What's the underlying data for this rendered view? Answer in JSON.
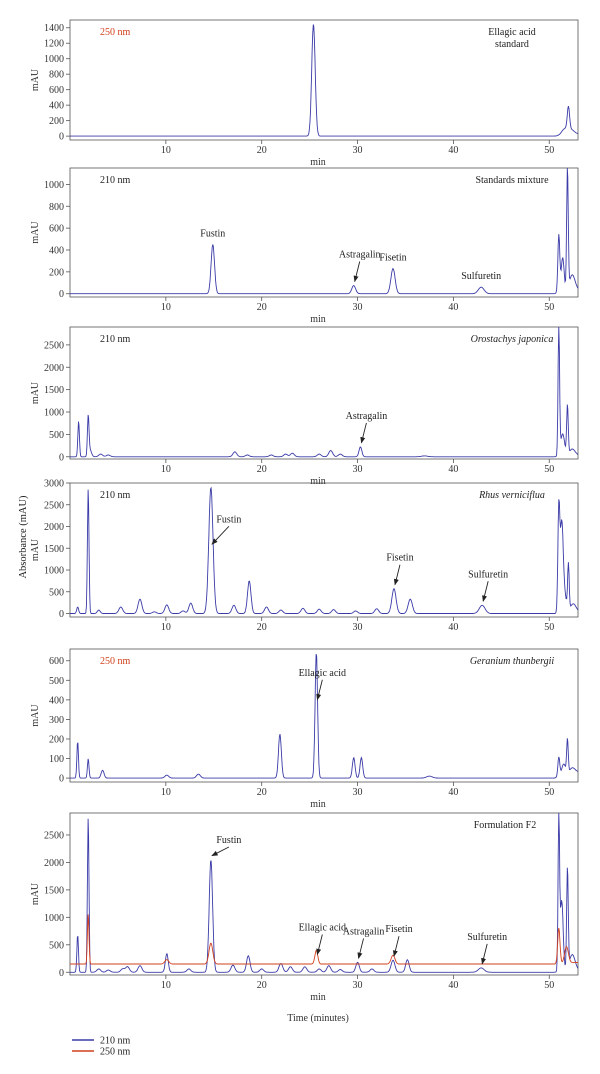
{
  "figure": {
    "y_axis_title": "Absorbance (mAU)",
    "legend": [
      {
        "name": "210 nm",
        "color": "#3b3ba8"
      },
      {
        "name": "250 nm",
        "color": "#d2401c"
      }
    ]
  },
  "chart_data": [
    {
      "type": "line",
      "wavelength": "250 nm",
      "wavelength_color": "#d2401c",
      "sample": "Ellagic acid\nstandard",
      "sample_italic": false,
      "xlabel": "min",
      "ylabel": "mAU",
      "xlim": [
        0,
        53
      ],
      "ylim": [
        -50,
        1500
      ],
      "xticks": [
        10,
        20,
        30,
        40,
        50
      ],
      "yticks": [
        0,
        200,
        400,
        600,
        800,
        1000,
        1200,
        1400
      ],
      "series": [
        {
          "color": "#3b3ba8",
          "baseline": 0,
          "peaks": [
            [
              25.4,
              1450,
              0.18
            ],
            [
              51.6,
              80,
              0.3
            ],
            [
              52.0,
              300,
              0.12
            ],
            [
              52.3,
              60,
              0.3
            ]
          ]
        }
      ],
      "annotations": []
    },
    {
      "type": "line",
      "wavelength": "210 nm",
      "wavelength_color": "#222222",
      "sample": "Standards mixture",
      "sample_italic": false,
      "xlabel": "min",
      "ylabel": "mAU",
      "xlim": [
        0,
        53
      ],
      "ylim": [
        -30,
        1150
      ],
      "xticks": [
        10,
        20,
        30,
        40,
        50
      ],
      "yticks": [
        0,
        200,
        400,
        600,
        800,
        1000
      ],
      "series": [
        {
          "color": "#3b3ba8",
          "baseline": 0,
          "peaks": [
            [
              14.9,
              450,
              0.18
            ],
            [
              29.6,
              75,
              0.2
            ],
            [
              33.7,
              230,
              0.22
            ],
            [
              42.9,
              60,
              0.3
            ],
            [
              51.0,
              530,
              0.1
            ],
            [
              51.4,
              320,
              0.15
            ],
            [
              51.9,
              1130,
              0.08
            ],
            [
              52.4,
              150,
              0.3
            ]
          ]
        }
      ],
      "annotations": [
        {
          "text": "Fustin",
          "x": 14.9,
          "y": 450,
          "arrow": false
        },
        {
          "text": "Astragalin",
          "x": 29.6,
          "y": 75,
          "arrow": true
        },
        {
          "text": "Fisetin",
          "x": 33.7,
          "y": 230,
          "arrow": false
        },
        {
          "text": "Sulfuretin",
          "x": 42.9,
          "y": 60,
          "arrow": false
        }
      ]
    },
    {
      "type": "line",
      "wavelength": "210 nm",
      "wavelength_color": "#222222",
      "sample": "Orostachys japonica",
      "sample_italic": true,
      "xlabel": "min",
      "ylabel": "mAU",
      "xlim": [
        0,
        53
      ],
      "ylim": [
        -50,
        2900
      ],
      "xticks": [
        10,
        20,
        30,
        40,
        50
      ],
      "yticks": [
        0,
        500,
        1000,
        1500,
        2000,
        2500
      ],
      "series": [
        {
          "color": "#3b3ba8",
          "baseline": 0,
          "peaks": [
            [
              0.9,
              800,
              0.08
            ],
            [
              1.9,
              900,
              0.08
            ],
            [
              2.1,
              150,
              0.15
            ],
            [
              3.2,
              60,
              0.2
            ],
            [
              4.0,
              40,
              0.2
            ],
            [
              17.2,
              110,
              0.2
            ],
            [
              18.5,
              40,
              0.2
            ],
            [
              21.0,
              40,
              0.2
            ],
            [
              22.5,
              60,
              0.2
            ],
            [
              23.2,
              80,
              0.2
            ],
            [
              26.0,
              60,
              0.2
            ],
            [
              27.2,
              140,
              0.2
            ],
            [
              28.2,
              60,
              0.2
            ],
            [
              30.3,
              220,
              0.15
            ],
            [
              37.0,
              20,
              0.3
            ],
            [
              51.0,
              2880,
              0.08
            ],
            [
              51.4,
              500,
              0.2
            ],
            [
              51.9,
              1120,
              0.08
            ],
            [
              52.4,
              150,
              0.3
            ]
          ]
        }
      ],
      "annotations": [
        {
          "text": "Astragalin",
          "x": 30.3,
          "y": 220,
          "arrow": true
        }
      ]
    },
    {
      "type": "line",
      "wavelength": "210 nm",
      "wavelength_color": "#222222",
      "sample": "Rhus verniciflua",
      "sample_italic": true,
      "xlabel": "",
      "ylabel": "mAU",
      "xlim": [
        0,
        53
      ],
      "ylim": [
        -80,
        3000
      ],
      "xticks": [
        10,
        20,
        30,
        40,
        50
      ],
      "yticks": [
        0,
        500,
        1000,
        1500,
        2000,
        2500,
        3000
      ],
      "series": [
        {
          "color": "#3b3ba8",
          "baseline": 0,
          "peaks": [
            [
              0.8,
              150,
              0.1
            ],
            [
              1.9,
              2900,
              0.08
            ],
            [
              3.0,
              80,
              0.15
            ],
            [
              5.3,
              150,
              0.2
            ],
            [
              7.3,
              330,
              0.2
            ],
            [
              8.8,
              40,
              0.2
            ],
            [
              10.1,
              200,
              0.2
            ],
            [
              11.8,
              60,
              0.2
            ],
            [
              12.6,
              240,
              0.2
            ],
            [
              14.7,
              2900,
              0.22
            ],
            [
              17.1,
              190,
              0.2
            ],
            [
              18.7,
              750,
              0.18
            ],
            [
              20.5,
              150,
              0.2
            ],
            [
              22.0,
              80,
              0.2
            ],
            [
              24.3,
              120,
              0.2
            ],
            [
              26.0,
              100,
              0.2
            ],
            [
              27.5,
              90,
              0.2
            ],
            [
              29.8,
              60,
              0.2
            ],
            [
              32.0,
              110,
              0.2
            ],
            [
              33.8,
              570,
              0.22
            ],
            [
              35.5,
              330,
              0.22
            ],
            [
              43.0,
              190,
              0.3
            ],
            [
              51.0,
              2350,
              0.1
            ],
            [
              51.3,
              2000,
              0.15
            ],
            [
              51.6,
              400,
              0.2
            ],
            [
              52.0,
              1060,
              0.08
            ],
            [
              52.5,
              200,
              0.3
            ]
          ]
        }
      ],
      "annotations": [
        {
          "text": "Fustin",
          "x": 14.7,
          "y": 1500,
          "arrow": true
        },
        {
          "text": "Fisetin",
          "x": 33.8,
          "y": 570,
          "arrow": true
        },
        {
          "text": "Sulfuretin",
          "x": 43.0,
          "y": 190,
          "arrow": true
        }
      ]
    },
    {
      "type": "line",
      "wavelength": "250 nm",
      "wavelength_color": "#d2401c",
      "sample": "Geranium thunbergii",
      "sample_italic": true,
      "xlabel": "min",
      "ylabel": "mAU",
      "xlim": [
        0,
        53
      ],
      "ylim": [
        -20,
        660
      ],
      "xticks": [
        10,
        20,
        30,
        40,
        50
      ],
      "yticks": [
        0,
        100,
        200,
        300,
        400,
        500,
        600
      ],
      "series": [
        {
          "color": "#3b3ba8",
          "baseline": 0,
          "peaks": [
            [
              0.8,
              190,
              0.08
            ],
            [
              1.9,
              100,
              0.08
            ],
            [
              3.4,
              40,
              0.15
            ],
            [
              10.1,
              15,
              0.2
            ],
            [
              13.4,
              20,
              0.2
            ],
            [
              21.9,
              225,
              0.15
            ],
            [
              25.7,
              645,
              0.13
            ],
            [
              29.6,
              105,
              0.14
            ],
            [
              30.4,
              105,
              0.14
            ],
            [
              37.5,
              10,
              0.3
            ],
            [
              51.0,
              100,
              0.1
            ],
            [
              51.5,
              60,
              0.2
            ],
            [
              51.9,
              175,
              0.08
            ],
            [
              52.4,
              30,
              0.3
            ]
          ]
        }
      ],
      "annotations": [
        {
          "text": "Ellagic acid",
          "x": 25.7,
          "y": 380,
          "arrow": true
        }
      ]
    },
    {
      "type": "line",
      "wavelength": "",
      "wavelength_color": "#222222",
      "sample": "Formulation F2",
      "sample_italic": false,
      "xlabel": "min",
      "xlabel2": "Time (minutes)",
      "ylabel": "mAU",
      "xlim": [
        0,
        53
      ],
      "ylim": [
        -50,
        2900
      ],
      "xticks": [
        10,
        20,
        30,
        40,
        50
      ],
      "yticks": [
        0,
        500,
        1000,
        1500,
        2000,
        2500
      ],
      "series": [
        {
          "name": "210 nm",
          "color": "#3b3ba8",
          "baseline": 0,
          "peaks": [
            [
              0.8,
              690,
              0.08
            ],
            [
              1.9,
              2850,
              0.08
            ],
            [
              3.0,
              60,
              0.2
            ],
            [
              4.0,
              40,
              0.2
            ],
            [
              5.5,
              60,
              0.2
            ],
            [
              6.0,
              100,
              0.2
            ],
            [
              7.3,
              120,
              0.2
            ],
            [
              10.1,
              340,
              0.15
            ],
            [
              12.4,
              60,
              0.2
            ],
            [
              14.7,
              2050,
              0.18
            ],
            [
              17.0,
              130,
              0.2
            ],
            [
              18.6,
              300,
              0.18
            ],
            [
              20.0,
              60,
              0.2
            ],
            [
              22.0,
              160,
              0.2
            ],
            [
              23.0,
              100,
              0.2
            ],
            [
              24.5,
              100,
              0.2
            ],
            [
              26.0,
              60,
              0.2
            ],
            [
              27.0,
              120,
              0.2
            ],
            [
              28.2,
              50,
              0.2
            ],
            [
              30.0,
              180,
              0.18
            ],
            [
              31.5,
              60,
              0.2
            ],
            [
              33.7,
              220,
              0.2
            ],
            [
              35.2,
              230,
              0.18
            ],
            [
              42.9,
              80,
              0.3
            ],
            [
              51.0,
              2750,
              0.08
            ],
            [
              51.3,
              1300,
              0.15
            ],
            [
              51.9,
              1870,
              0.08
            ],
            [
              52.4,
              300,
              0.3
            ]
          ]
        },
        {
          "name": "250 nm",
          "color": "#d2401c",
          "baseline": 150,
          "peaks": [
            [
              1.9,
              920,
              0.08
            ],
            [
              10.1,
              80,
              0.2
            ],
            [
              14.7,
              380,
              0.2
            ],
            [
              25.7,
              250,
              0.15
            ],
            [
              33.7,
              160,
              0.2
            ],
            [
              51.0,
              650,
              0.12
            ],
            [
              51.8,
              300,
              0.2
            ]
          ]
        }
      ],
      "annotations": [
        {
          "text": "Fustin",
          "x": 14.7,
          "y": 2050,
          "arrow": true
        },
        {
          "text": "Ellagic acid",
          "x": 25.7,
          "y": 250,
          "arrow": true
        },
        {
          "text": "Astragalin",
          "x": 30.0,
          "y": 180,
          "arrow": true
        },
        {
          "text": "Fisetin",
          "x": 33.7,
          "y": 220,
          "arrow": true
        },
        {
          "text": "Sulfuretin",
          "x": 42.9,
          "y": 80,
          "arrow": true
        }
      ]
    }
  ]
}
